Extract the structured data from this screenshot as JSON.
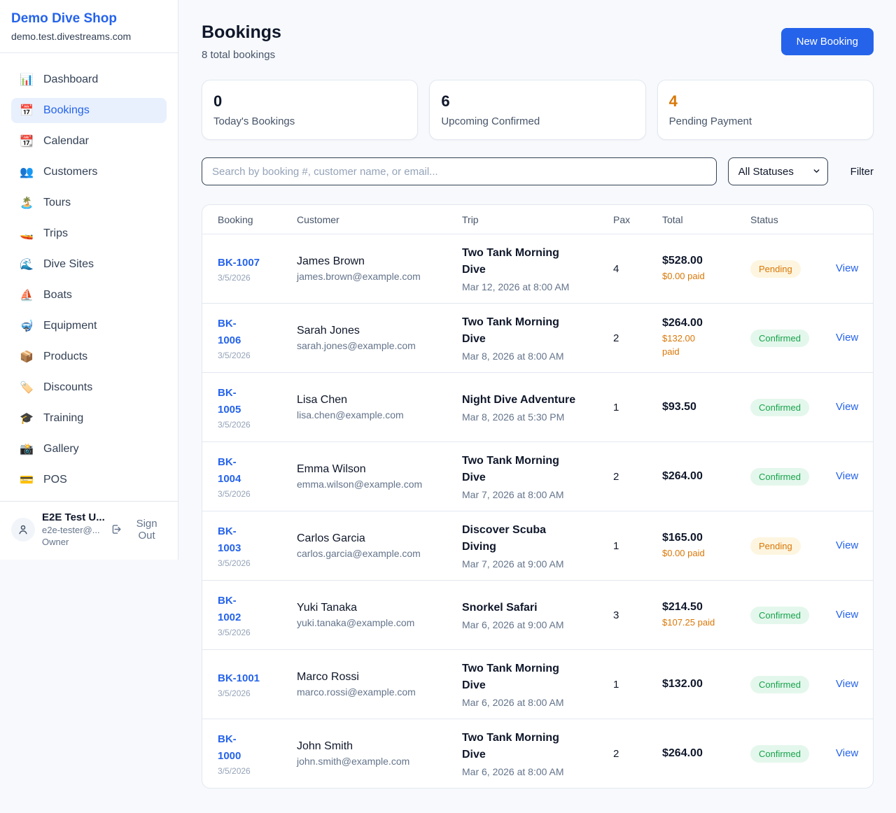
{
  "colors": {
    "accent_blue": "#2563eb",
    "pending_orange": "#d97706",
    "confirmed_green": "#16a34a",
    "pending_badge_bg": "#fdf5df",
    "confirmed_badge_bg": "#e4f7ec",
    "page_bg": "#f7f9fc"
  },
  "sidebar": {
    "shop_name": "Demo Dive Shop",
    "shop_domain": "demo.test.divestreams.com",
    "nav": [
      {
        "label": "Dashboard",
        "icon": "📊",
        "icon_name": "bar-chart-icon",
        "active": false
      },
      {
        "label": "Bookings",
        "icon": "📅",
        "icon_name": "calendar-icon",
        "active": true
      },
      {
        "label": "Calendar",
        "icon": "📆",
        "icon_name": "tear-off-calendar-icon",
        "active": false
      },
      {
        "label": "Customers",
        "icon": "👥",
        "icon_name": "people-icon",
        "active": false
      },
      {
        "label": "Tours",
        "icon": "🏝️",
        "icon_name": "island-icon",
        "active": false
      },
      {
        "label": "Trips",
        "icon": "🚤",
        "icon_name": "speedboat-icon",
        "active": false
      },
      {
        "label": "Dive Sites",
        "icon": "🌊",
        "icon_name": "wave-icon",
        "active": false
      },
      {
        "label": "Boats",
        "icon": "⛵",
        "icon_name": "sailboat-icon",
        "active": false
      },
      {
        "label": "Equipment",
        "icon": "🤿",
        "icon_name": "diving-mask-icon",
        "active": false
      },
      {
        "label": "Products",
        "icon": "📦",
        "icon_name": "package-icon",
        "active": false
      },
      {
        "label": "Discounts",
        "icon": "🏷️",
        "icon_name": "tag-icon",
        "active": false
      },
      {
        "label": "Training",
        "icon": "🎓",
        "icon_name": "graduation-cap-icon",
        "active": false
      },
      {
        "label": "Gallery",
        "icon": "📸",
        "icon_name": "camera-icon",
        "active": false
      },
      {
        "label": "POS",
        "icon": "💳",
        "icon_name": "credit-card-icon",
        "active": false
      }
    ],
    "user": {
      "name": "E2E Test U...",
      "email": "e2e-tester@...",
      "role": "Owner",
      "sign_out_label": "Sign Out"
    }
  },
  "header": {
    "title": "Bookings",
    "subtitle": "8 total bookings",
    "new_booking_label": "New Booking"
  },
  "stats": [
    {
      "value": "0",
      "label": "Today's Bookings",
      "value_color": "#0f172a"
    },
    {
      "value": "6",
      "label": "Upcoming Confirmed",
      "value_color": "#0f172a"
    },
    {
      "value": "4",
      "label": "Pending Payment",
      "value_color": "#d97706"
    }
  ],
  "filters": {
    "search_placeholder": "Search by booking #, customer name, or email...",
    "status_selected": "All Statuses",
    "filter_label": "Filter"
  },
  "table": {
    "columns": [
      "Booking",
      "Customer",
      "Trip",
      "Pax",
      "Total",
      "Status"
    ],
    "view_label": "View",
    "rows": [
      {
        "id": "BK-1007",
        "date": "3/5/2026",
        "customer_name": "James Brown",
        "customer_email": "james.brown@example.com",
        "trip_name": "Two Tank Morning\nDive",
        "trip_datetime": "Mar 12, 2026 at 8:00 AM",
        "pax": "4",
        "total": "$528.00",
        "paid": "$0.00 paid",
        "status": "Pending"
      },
      {
        "id": "BK-\n1006",
        "date": "3/5/2026",
        "customer_name": "Sarah Jones",
        "customer_email": "sarah.jones@example.com",
        "trip_name": "Two Tank Morning\nDive",
        "trip_datetime": "Mar 8, 2026 at 8:00 AM",
        "pax": "2",
        "total": "$264.00",
        "paid": "$132.00\npaid",
        "status": "Confirmed"
      },
      {
        "id": "BK-\n1005",
        "date": "3/5/2026",
        "customer_name": "Lisa Chen",
        "customer_email": "lisa.chen@example.com",
        "trip_name": "Night Dive Adventure",
        "trip_datetime": "Mar 8, 2026 at 5:30 PM",
        "pax": "1",
        "total": "$93.50",
        "paid": "",
        "status": "Confirmed"
      },
      {
        "id": "BK-\n1004",
        "date": "3/5/2026",
        "customer_name": "Emma Wilson",
        "customer_email": "emma.wilson@example.com",
        "trip_name": "Two Tank Morning\nDive",
        "trip_datetime": "Mar 7, 2026 at 8:00 AM",
        "pax": "2",
        "total": "$264.00",
        "paid": "",
        "status": "Confirmed"
      },
      {
        "id": "BK-\n1003",
        "date": "3/5/2026",
        "customer_name": "Carlos Garcia",
        "customer_email": "carlos.garcia@example.com",
        "trip_name": "Discover Scuba\nDiving",
        "trip_datetime": "Mar 7, 2026 at 9:00 AM",
        "pax": "1",
        "total": "$165.00",
        "paid": "$0.00 paid",
        "status": "Pending"
      },
      {
        "id": "BK-\n1002",
        "date": "3/5/2026",
        "customer_name": "Yuki Tanaka",
        "customer_email": "yuki.tanaka@example.com",
        "trip_name": "Snorkel Safari",
        "trip_datetime": "Mar 6, 2026 at 9:00 AM",
        "pax": "3",
        "total": "$214.50",
        "paid": "$107.25 paid",
        "status": "Confirmed"
      },
      {
        "id": "BK-1001",
        "date": "3/5/2026",
        "customer_name": "Marco Rossi",
        "customer_email": "marco.rossi@example.com",
        "trip_name": "Two Tank Morning\nDive",
        "trip_datetime": "Mar 6, 2026 at 8:00 AM",
        "pax": "1",
        "total": "$132.00",
        "paid": "",
        "status": "Confirmed"
      },
      {
        "id": "BK-\n1000",
        "date": "3/5/2026",
        "customer_name": "John Smith",
        "customer_email": "john.smith@example.com",
        "trip_name": "Two Tank Morning\nDive",
        "trip_datetime": "Mar 6, 2026 at 8:00 AM",
        "pax": "2",
        "total": "$264.00",
        "paid": "",
        "status": "Confirmed"
      }
    ]
  }
}
